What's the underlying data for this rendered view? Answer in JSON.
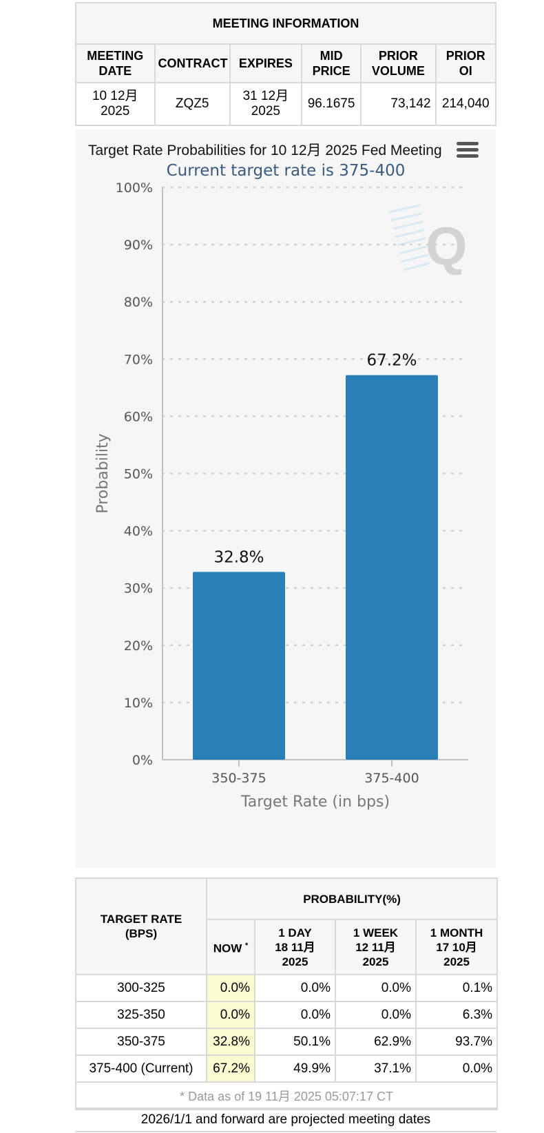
{
  "meeting_info": {
    "title": "MEETING INFORMATION",
    "headers": [
      "MEETING\nDATE",
      "CONTRACT",
      "EXPIRES",
      "MID\nPRICE",
      "PRIOR\nVOLUME",
      "PRIOR\nOI"
    ],
    "values": [
      "10 12月\n2025",
      "ZQZ5",
      "31 12月\n2025",
      "96.1675",
      "73,142",
      "214,040"
    ]
  },
  "chart": {
    "menu_icon": "hamburger-menu-icon",
    "watermark_icon": "q-logo-icon"
  },
  "chart_data": {
    "type": "bar",
    "title": "Target Rate Probabilities for 10 12月 2025 Fed Meeting",
    "subtitle": "Current target rate is 375-400",
    "xlabel": "Target Rate (in bps)",
    "ylabel": "Probability",
    "categories": [
      "350-375",
      "375-400"
    ],
    "values": [
      32.8,
      67.2
    ],
    "data_labels": [
      "32.8%",
      "67.2%"
    ],
    "ylim": [
      0,
      100
    ],
    "yticks": [
      "0%",
      "10%",
      "20%",
      "30%",
      "40%",
      "50%",
      "60%",
      "70%",
      "80%",
      "90%",
      "100%"
    ],
    "grid": "dotted horizontal",
    "bar_color": "#2b7fb8",
    "subtitle_color": "#3a5a80"
  },
  "probability_table": {
    "group_header": "PROBABILITY(%)",
    "target_header": "TARGET RATE\n(BPS)",
    "columns": [
      {
        "label": "NOW",
        "star": "*"
      },
      {
        "label": "1 DAY\n18 11月\n2025"
      },
      {
        "label": "1 WEEK\n12 11月\n2025"
      },
      {
        "label": "1 MONTH\n17 10月\n2025"
      }
    ],
    "rows": [
      {
        "rate": "300-325",
        "now": "0.0%",
        "day": "0.0%",
        "week": "0.0%",
        "month": "0.1%"
      },
      {
        "rate": "325-350",
        "now": "0.0%",
        "day": "0.0%",
        "week": "0.0%",
        "month": "6.3%"
      },
      {
        "rate": "350-375",
        "now": "32.8%",
        "day": "50.1%",
        "week": "62.9%",
        "month": "93.7%"
      },
      {
        "rate": "375-400 (Current)",
        "now": "67.2%",
        "day": "49.9%",
        "week": "37.1%",
        "month": "0.0%"
      }
    ],
    "footnote": "* Data as of 19 11月 2025 05:07:17 CT",
    "now_highlight_color": "#fbfbd2"
  },
  "note": "2026/1/1 and forward are projected meeting dates"
}
